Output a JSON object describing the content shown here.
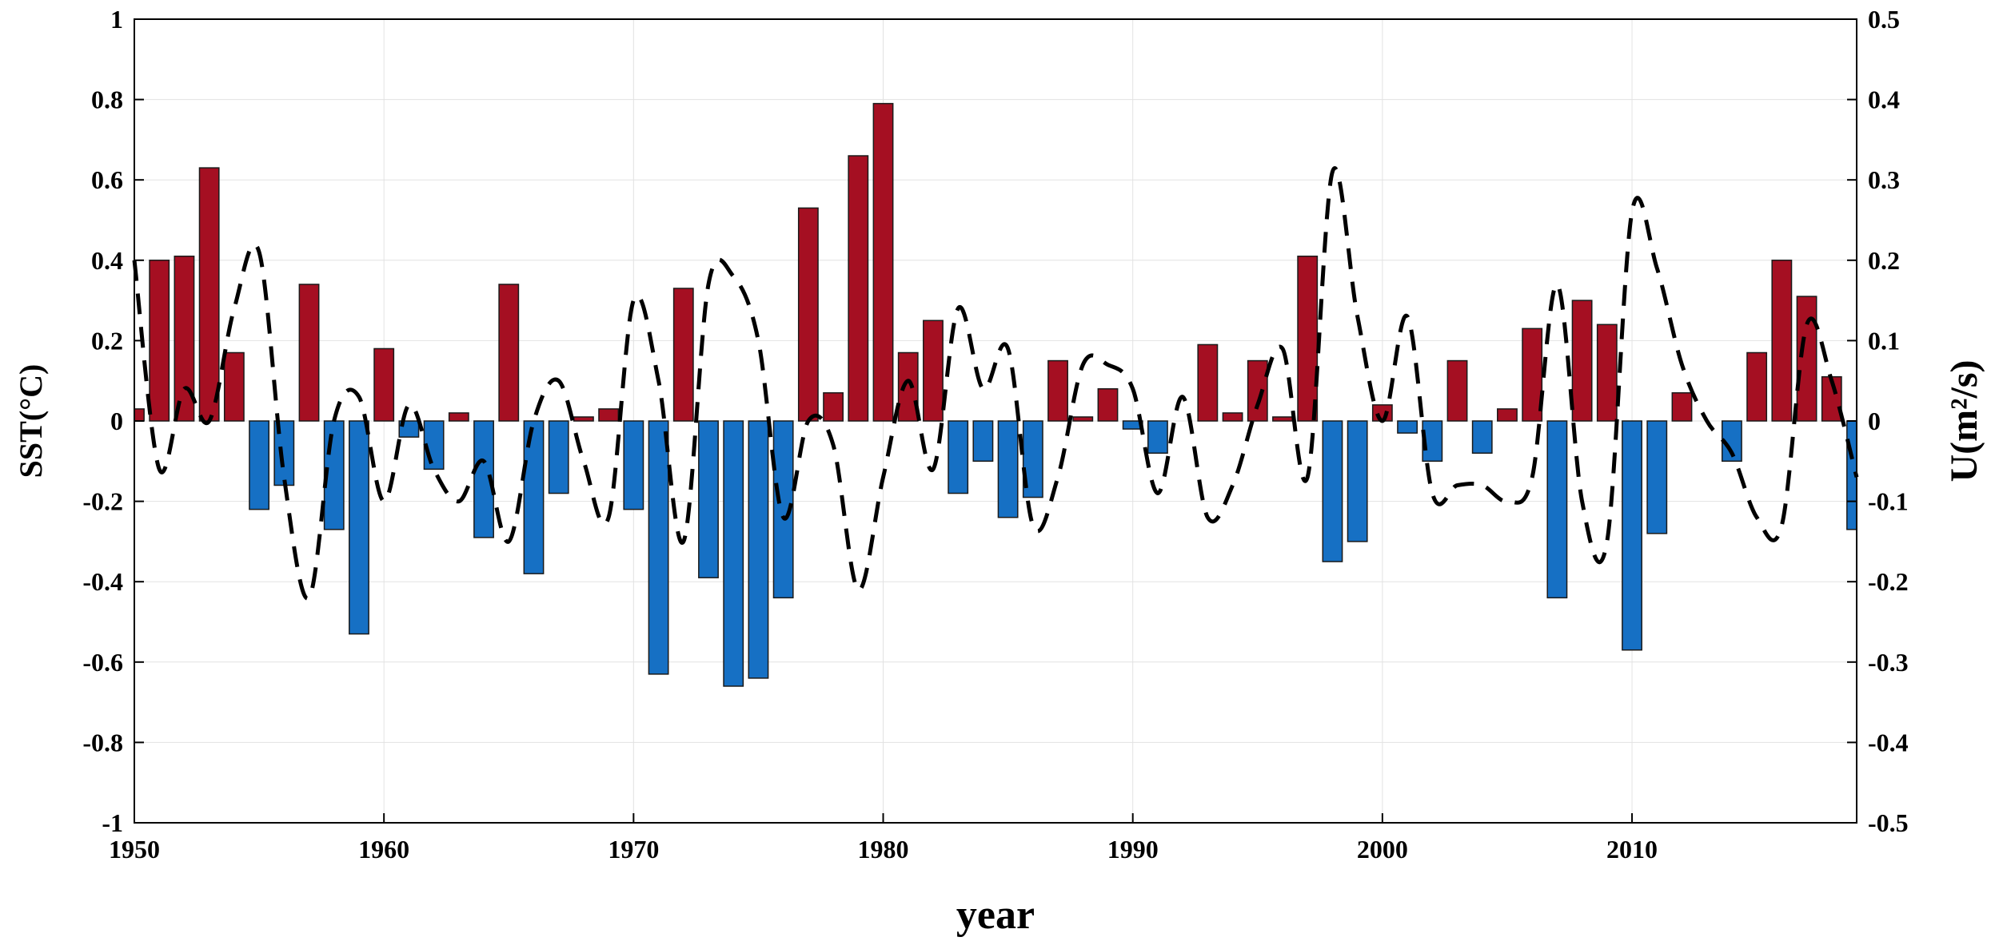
{
  "chart_data": {
    "type": "bar",
    "title": "",
    "xlabel": "year",
    "ylabel": "SST(°C)",
    "ylabel_right": "U(m²/s)",
    "xlim": [
      1950,
      2019
    ],
    "ylim": [
      -1,
      1
    ],
    "ylim_right": [
      -0.5,
      0.5
    ],
    "grid": true,
    "x_ticks": [
      "1950",
      "1960",
      "1970",
      "1980",
      "1990",
      "2000",
      "2010"
    ],
    "y_ticks": [
      "-1",
      "-0.8",
      "-0.6",
      "-0.4",
      "-0.2",
      "0",
      "0.2",
      "0.4",
      "0.6",
      "0.8",
      "1"
    ],
    "y_ticks_right": [
      "-0.5",
      "-0.4",
      "-0.3",
      "-0.2",
      "-0.1",
      "0",
      "0.1",
      "0.2",
      "0.3",
      "0.4",
      "0.5"
    ],
    "positive_color": "#a50f22",
    "negative_color": "#1670c4",
    "line_color": "#000000",
    "series": [
      {
        "name": "SST",
        "axis": "left",
        "type": "bar",
        "x": [
          1950,
          1951,
          1952,
          1953,
          1954,
          1955,
          1956,
          1957,
          1958,
          1959,
          1960,
          1961,
          1962,
          1963,
          1964,
          1965,
          1966,
          1967,
          1968,
          1969,
          1970,
          1971,
          1972,
          1973,
          1974,
          1975,
          1976,
          1977,
          1978,
          1979,
          1980,
          1981,
          1982,
          1983,
          1984,
          1985,
          1986,
          1987,
          1988,
          1989,
          1990,
          1991,
          1992,
          1993,
          1994,
          1995,
          1996,
          1997,
          1998,
          1999,
          2000,
          2001,
          2002,
          2003,
          2004,
          2005,
          2006,
          2007,
          2008,
          2009,
          2010,
          2011,
          2012,
          2013,
          2014,
          2015,
          2016,
          2017,
          2018,
          2019
        ],
        "values": [
          0.03,
          0.4,
          0.41,
          0.63,
          0.17,
          -0.22,
          -0.16,
          0.34,
          -0.27,
          -0.53,
          0.18,
          -0.04,
          -0.12,
          0.02,
          -0.29,
          0.34,
          -0.38,
          -0.18,
          0.01,
          0.03,
          -0.22,
          -0.63,
          0.33,
          -0.39,
          -0.66,
          -0.64,
          -0.44,
          0.53,
          0.07,
          0.66,
          0.79,
          0.17,
          0.25,
          -0.18,
          -0.1,
          -0.24,
          -0.19,
          0.15,
          0.01,
          0.08,
          -0.02,
          -0.08,
          0.0,
          0.19,
          0.02,
          0.15,
          0.01,
          0.41,
          -0.35,
          -0.3,
          0.04,
          -0.03,
          -0.1,
          0.15,
          -0.08,
          0.03,
          0.23,
          -0.44,
          0.3,
          0.24,
          -0.57,
          -0.28,
          0.07,
          0.0,
          -0.1,
          0.17,
          0.4,
          0.31,
          0.11,
          -0.27
        ]
      },
      {
        "name": "U",
        "axis": "right",
        "type": "line",
        "style": "dashed",
        "x": [
          1950,
          1951,
          1952,
          1953,
          1954,
          1955,
          1956,
          1957,
          1958,
          1959,
          1960,
          1961,
          1962,
          1963,
          1964,
          1965,
          1966,
          1967,
          1968,
          1969,
          1970,
          1971,
          1972,
          1973,
          1974,
          1975,
          1976,
          1977,
          1978,
          1979,
          1980,
          1981,
          1982,
          1983,
          1984,
          1985,
          1986,
          1987,
          1988,
          1989,
          1990,
          1991,
          1992,
          1993,
          1994,
          1995,
          1996,
          1997,
          1998,
          1999,
          2000,
          2001,
          2002,
          2003,
          2004,
          2005,
          2006,
          2007,
          2008,
          2009,
          2010,
          2011,
          2012,
          2013,
          2014,
          2015,
          2016,
          2017,
          2018,
          2019
        ],
        "values": [
          0.2,
          -0.06,
          0.04,
          0.0,
          0.14,
          0.21,
          -0.07,
          -0.22,
          0.0,
          0.03,
          -0.1,
          0.02,
          -0.06,
          -0.1,
          -0.05,
          -0.15,
          0.0,
          0.05,
          -0.05,
          -0.12,
          0.15,
          0.05,
          -0.15,
          0.17,
          0.18,
          0.1,
          -0.12,
          0.0,
          -0.03,
          -0.21,
          -0.07,
          0.05,
          -0.06,
          0.14,
          0.04,
          0.09,
          -0.13,
          -0.07,
          0.07,
          0.07,
          0.04,
          -0.09,
          0.03,
          -0.12,
          -0.08,
          0.02,
          0.09,
          -0.07,
          0.31,
          0.13,
          0.0,
          0.13,
          -0.09,
          -0.08,
          -0.08,
          -0.1,
          -0.07,
          0.17,
          -0.1,
          -0.15,
          0.26,
          0.19,
          0.07,
          0.0,
          -0.04,
          -0.12,
          -0.13,
          0.12,
          0.05,
          -0.07
        ]
      }
    ]
  }
}
